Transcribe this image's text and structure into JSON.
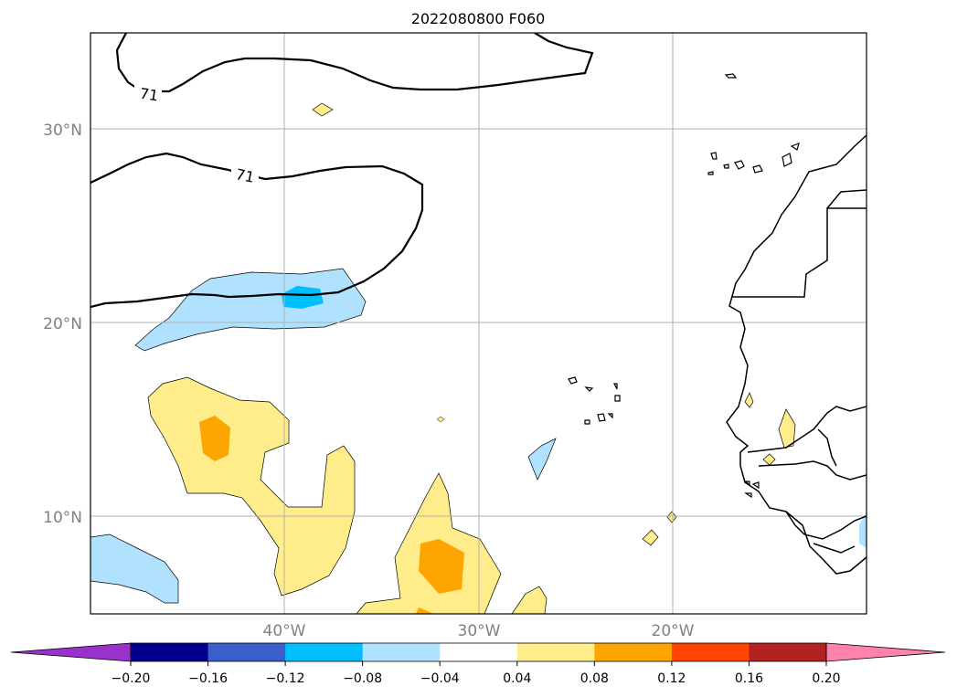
{
  "chart_data": {
    "type": "map-contour",
    "title": "2022080800 F060",
    "lat_labels": [
      "30°N",
      "20°N",
      "10°N"
    ],
    "lon_labels": [
      "40°W",
      "30°W",
      "20°W"
    ],
    "contour_labels": [
      "71",
      "71"
    ],
    "colorbar": {
      "extend": "both",
      "levels": [
        -0.2,
        -0.16,
        -0.12,
        -0.08,
        -0.04,
        0.04,
        0.08,
        0.12,
        0.16,
        0.2
      ],
      "tick_labels": [
        "−0.20",
        "−0.16",
        "−0.12",
        "−0.08",
        "−0.04",
        "0.04",
        "0.08",
        "0.12",
        "0.16",
        "0.20"
      ],
      "colors": [
        "#9932cc",
        "#00008b",
        "#3a5fcd",
        "#00bfff",
        "#b0e2ff",
        "#ffffff",
        "#ffec8b",
        "#ffa500",
        "#ff4500",
        "#b22222",
        "#ff82ab"
      ]
    },
    "grid": true
  }
}
